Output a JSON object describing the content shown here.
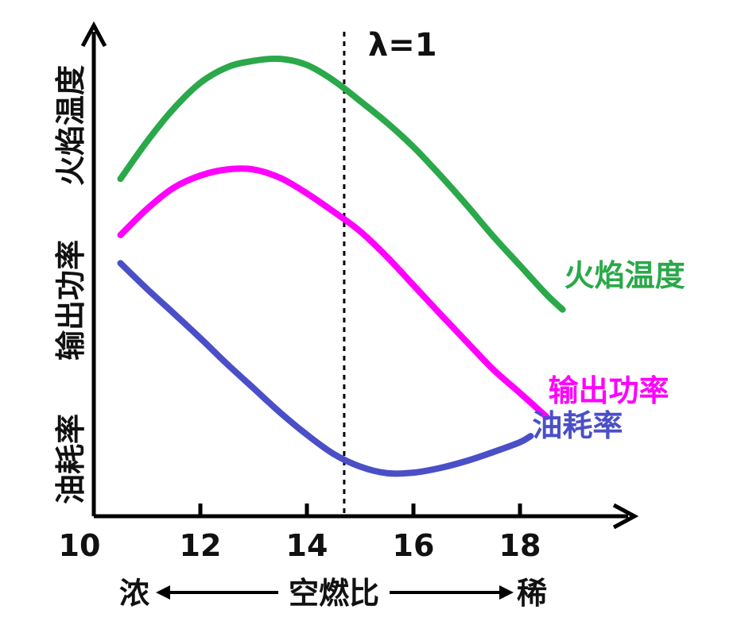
{
  "chart_data": {
    "type": "line",
    "xlabel": "空燃比",
    "x_ticks": [
      {
        "value": 10,
        "label": "10"
      },
      {
        "value": 12,
        "label": "12"
      },
      {
        "value": 14,
        "label": "14"
      },
      {
        "value": 16,
        "label": "16"
      },
      {
        "value": 18,
        "label": "18"
      }
    ],
    "xlim": [
      10,
      20
    ],
    "ylim": [
      0,
      100
    ],
    "y_tick_values": false,
    "ylabel_parts": [
      "油耗率",
      "输出功率",
      "火焰温度"
    ],
    "direction_left": "浓",
    "direction_right": "稀",
    "reference_line": {
      "x": 14.7,
      "label": "λ=1",
      "style": "dashed"
    },
    "grid": false,
    "series": [
      {
        "name": "火焰温度",
        "color": "#2aa84a",
        "points": [
          [
            10.5,
            72
          ],
          [
            11.0,
            80
          ],
          [
            11.5,
            87
          ],
          [
            12.0,
            92.5
          ],
          [
            12.5,
            95.8
          ],
          [
            13.0,
            97.2
          ],
          [
            13.5,
            97.6
          ],
          [
            14.0,
            96.3
          ],
          [
            14.5,
            93
          ],
          [
            15.0,
            88.6
          ],
          [
            15.5,
            84
          ],
          [
            16.0,
            78.8
          ],
          [
            16.5,
            72.8
          ],
          [
            17.0,
            66.4
          ],
          [
            17.5,
            59.7
          ],
          [
            18.0,
            53.5
          ],
          [
            18.5,
            47.3
          ],
          [
            18.8,
            44.1
          ]
        ]
      },
      {
        "name": "输出功率",
        "color": "#ff00ff",
        "points": [
          [
            10.5,
            60
          ],
          [
            11.0,
            65.6
          ],
          [
            11.5,
            70.1
          ],
          [
            12.0,
            72.7
          ],
          [
            12.5,
            74
          ],
          [
            13.0,
            74
          ],
          [
            13.5,
            72.2
          ],
          [
            14.0,
            68.9
          ],
          [
            14.5,
            65
          ],
          [
            15.0,
            60.8
          ],
          [
            15.5,
            55.4
          ],
          [
            16.0,
            49.3
          ],
          [
            16.5,
            43.2
          ],
          [
            17.0,
            37.2
          ],
          [
            17.5,
            31.3
          ],
          [
            18.0,
            26.3
          ],
          [
            18.5,
            21.2
          ]
        ]
      },
      {
        "name": "油耗率",
        "color": "#4b4fc7",
        "points": [
          [
            10.5,
            54
          ],
          [
            11.0,
            48.5
          ],
          [
            11.5,
            43.3
          ],
          [
            12.0,
            38
          ],
          [
            12.5,
            32.5
          ],
          [
            13.0,
            27.3
          ],
          [
            13.5,
            22.1
          ],
          [
            14.0,
            17.4
          ],
          [
            14.5,
            13.3
          ],
          [
            15.0,
            10.6
          ],
          [
            15.5,
            9.2
          ],
          [
            16.0,
            9.3
          ],
          [
            16.5,
            10.3
          ],
          [
            17.0,
            11.8
          ],
          [
            17.5,
            13.7
          ],
          [
            18.0,
            15.8
          ],
          [
            18.2,
            17.1
          ]
        ]
      }
    ]
  }
}
